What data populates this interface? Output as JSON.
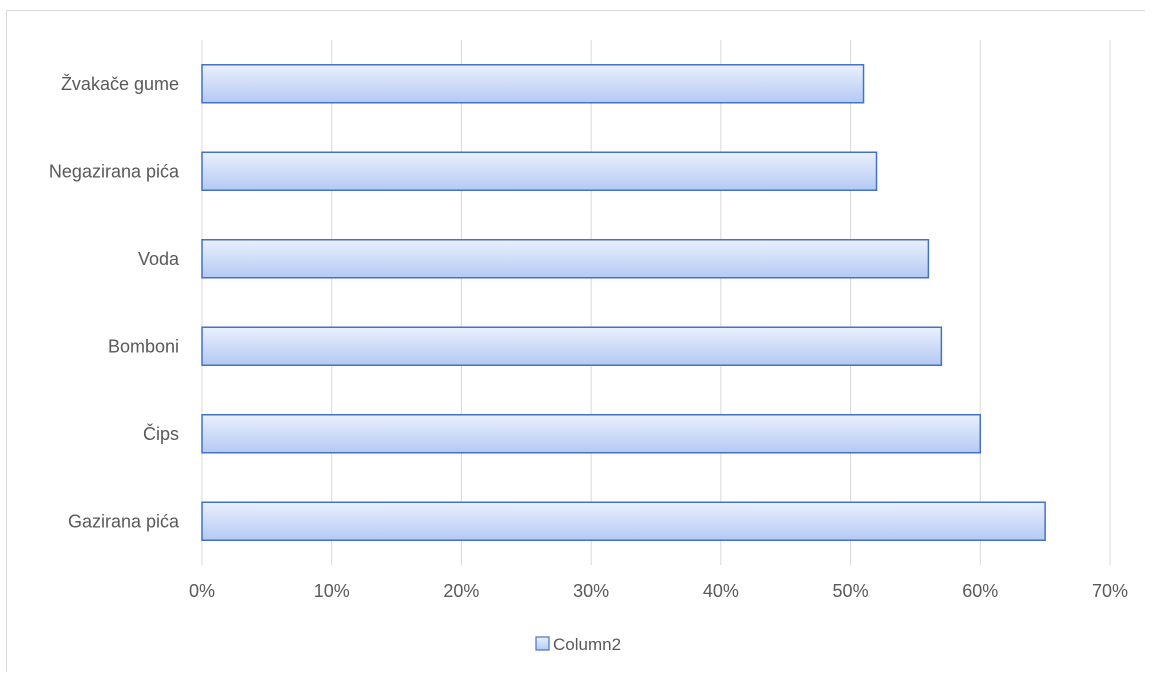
{
  "chart_data": {
    "type": "bar",
    "orientation": "horizontal",
    "categories": [
      "Gazirana pića",
      "Čips",
      "Bomboni",
      "Voda",
      "Negazirana pića",
      "Žvakače gume"
    ],
    "series": [
      {
        "name": "Column2",
        "values": [
          0.65,
          0.6,
          0.57,
          0.56,
          0.52,
          0.51
        ]
      }
    ],
    "xlim": [
      0,
      0.7
    ],
    "xticks": [
      0,
      0.1,
      0.2,
      0.3,
      0.4,
      0.5,
      0.6,
      0.7
    ],
    "xtick_labels": [
      "0%",
      "10%",
      "20%",
      "30%",
      "40%",
      "50%",
      "60%",
      "70%"
    ],
    "grid": true,
    "legend_position": "bottom",
    "title": "",
    "xlabel": "",
    "ylabel": "",
    "colors": {
      "bar_fill_light": "#eaf0fd",
      "bar_fill_dark": "#b4c9f3",
      "bar_stroke": "#4472c4",
      "grid": "#d9d9d9",
      "text": "#595959"
    }
  }
}
